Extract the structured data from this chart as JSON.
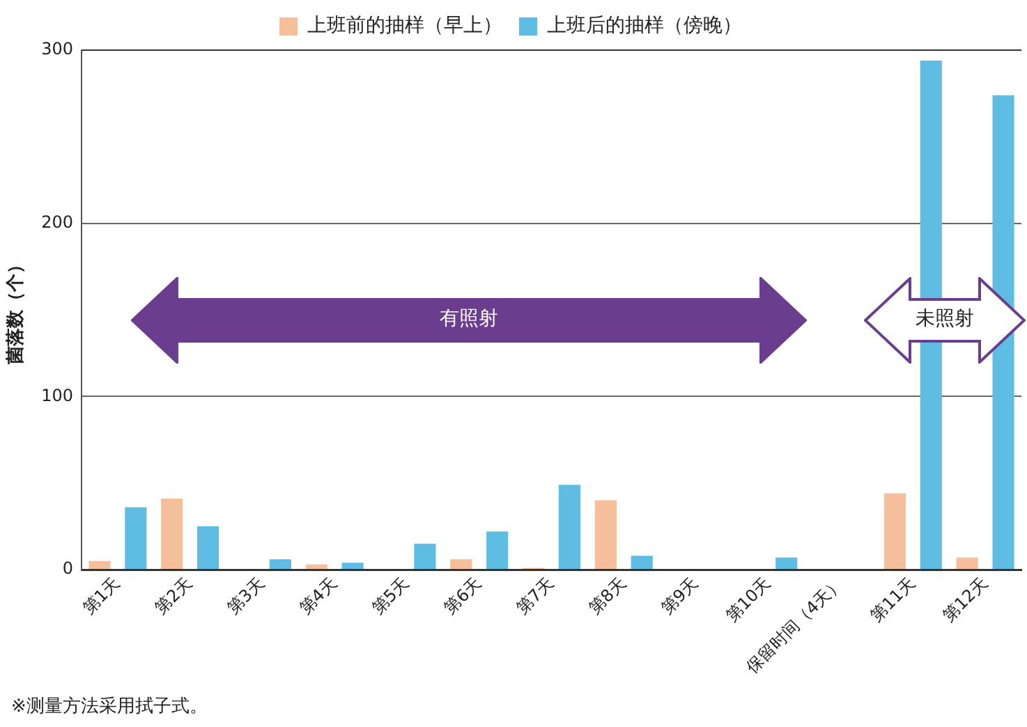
{
  "chart_data": {
    "type": "bar",
    "ylabel": "菌落数（个）",
    "categories": [
      "第1天",
      "第2天",
      "第3天",
      "第4天",
      "第5天",
      "第6天",
      "第7天",
      "第8天",
      "第9天",
      "第10天",
      "保留时间（4天）",
      "第11天",
      "第12天"
    ],
    "series": [
      {
        "name": "上班前的抽样（早上）",
        "color": "#f4bf9a",
        "values": [
          5,
          41,
          0,
          3,
          0,
          6,
          1,
          40,
          0,
          0,
          0,
          44,
          7
        ]
      },
      {
        "name": "上班后的抽样（傍晚）",
        "color": "#5fbce3",
        "values": [
          36,
          25,
          6,
          4,
          15,
          22,
          49,
          8,
          0,
          7,
          0,
          294,
          274
        ]
      }
    ],
    "ylim": [
      0,
      300
    ],
    "yticks": [
      0,
      100,
      200,
      300
    ],
    "grid": "y",
    "legend": "top",
    "annotations": [
      "有照射",
      "未照射",
      "※测量方法采用拭子式。"
    ]
  }
}
